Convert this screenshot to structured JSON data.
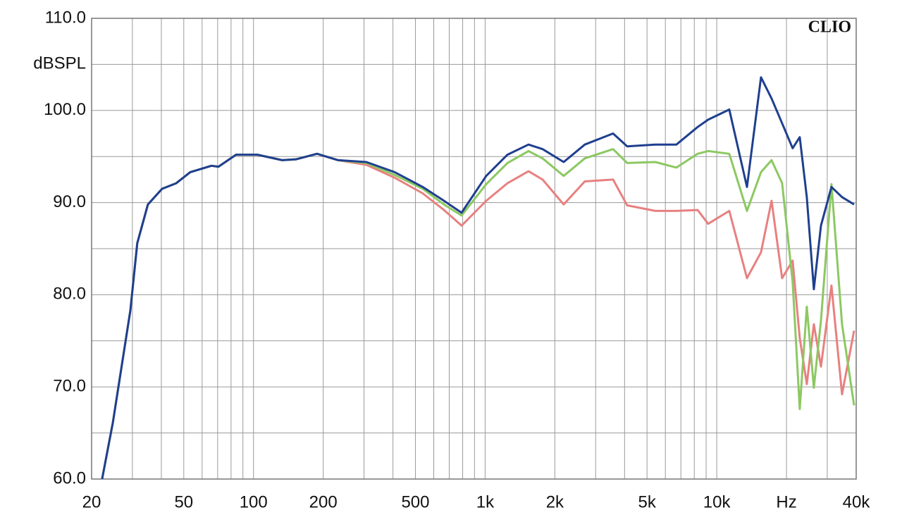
{
  "chart_data": {
    "type": "line",
    "annotation": "CLIO",
    "y_label": "dBSPL",
    "xscale": "log",
    "grid": true,
    "xlim": [
      20,
      40000
    ],
    "ylim": [
      60,
      110
    ],
    "xticks": [
      20,
      50,
      100,
      200,
      500,
      {
        "value": 1000,
        "label": "1k"
      },
      {
        "value": 2000,
        "label": "2k"
      },
      {
        "value": 5000,
        "label": "5k"
      },
      {
        "value": 10000,
        "label": "10k"
      },
      {
        "value": 20000,
        "label": "Hz"
      },
      {
        "value": 40000,
        "label": "40k"
      }
    ],
    "xminorticks": [
      30,
      40,
      60,
      70,
      80,
      90,
      300,
      400,
      600,
      700,
      800,
      900,
      3000,
      4000,
      6000,
      7000,
      8000,
      9000,
      30000
    ],
    "yticks": [
      {
        "value": 60,
        "label": "60.0"
      },
      {
        "value": 70,
        "label": "70.0"
      },
      {
        "value": 80,
        "label": "80.0"
      },
      {
        "value": 90,
        "label": "90.0"
      },
      {
        "value": 100,
        "label": "100.0"
      },
      {
        "value": 110,
        "label": "110.0"
      }
    ],
    "yminorticks": [
      65,
      75,
      85,
      95,
      105
    ],
    "x": [
      22.2,
      24.7,
      29.4,
      31.5,
      35.0,
      40.3,
      46.4,
      53.3,
      65.8,
      70.6,
      84.1,
      104,
      133,
      153,
      188,
      232,
      307,
      407,
      538,
      664,
      791,
      1011,
      1248,
      1539,
      1771,
      2184,
      2695,
      3567,
      4104,
      5430,
      6700,
      8268,
      9182,
      11330,
      13500,
      15530,
      17250,
      19160,
      21270,
      22820,
      24480,
      26260,
      28170,
      31290,
      34750,
      39160
    ],
    "series": [
      {
        "color": "#e88080",
        "values": [
          60,
          66.1,
          78.3,
          85.6,
          89.8,
          91.5,
          92.1,
          93.3,
          94.0,
          93.9,
          95.2,
          95.2,
          94.6,
          94.7,
          95.3,
          94.6,
          94.1,
          92.7,
          91.0,
          89.2,
          87.5,
          90.2,
          92.1,
          93.4,
          92.5,
          89.8,
          92.3,
          92.5,
          89.7,
          89.1,
          89.1,
          89.2,
          87.7,
          89.1,
          81.8,
          84.6,
          90.2,
          81.8,
          83.7,
          75.3,
          70.3,
          76.8,
          72.2,
          81.0,
          69.2,
          76.1
        ]
      },
      {
        "color": "#8cc862",
        "values": [
          60,
          66.1,
          78.3,
          85.6,
          89.8,
          91.5,
          92.1,
          93.3,
          94.0,
          93.9,
          95.2,
          95.2,
          94.6,
          94.7,
          95.3,
          94.6,
          94.3,
          93.0,
          91.5,
          89.8,
          88.6,
          92.0,
          94.3,
          95.6,
          94.8,
          92.9,
          94.8,
          95.8,
          94.3,
          94.4,
          93.8,
          95.3,
          95.6,
          95.3,
          89.1,
          93.3,
          94.6,
          92.1,
          81.4,
          67.6,
          78.7,
          69.9,
          77.2,
          92.0,
          76.8,
          68.0
        ]
      },
      {
        "color": "#1f3f8f",
        "values": [
          60,
          66.1,
          78.3,
          85.6,
          89.8,
          91.5,
          92.1,
          93.3,
          94.0,
          93.9,
          95.2,
          95.2,
          94.6,
          94.7,
          95.3,
          94.6,
          94.4,
          93.3,
          91.7,
          90.2,
          88.9,
          92.9,
          95.2,
          96.3,
          95.8,
          94.4,
          96.3,
          97.5,
          96.1,
          96.3,
          96.3,
          98.2,
          99.0,
          100.1,
          91.7,
          103.6,
          101.3,
          98.6,
          95.9,
          97.1,
          90.6,
          80.6,
          87.5,
          91.7,
          90.6,
          89.8
        ]
      }
    ]
  }
}
